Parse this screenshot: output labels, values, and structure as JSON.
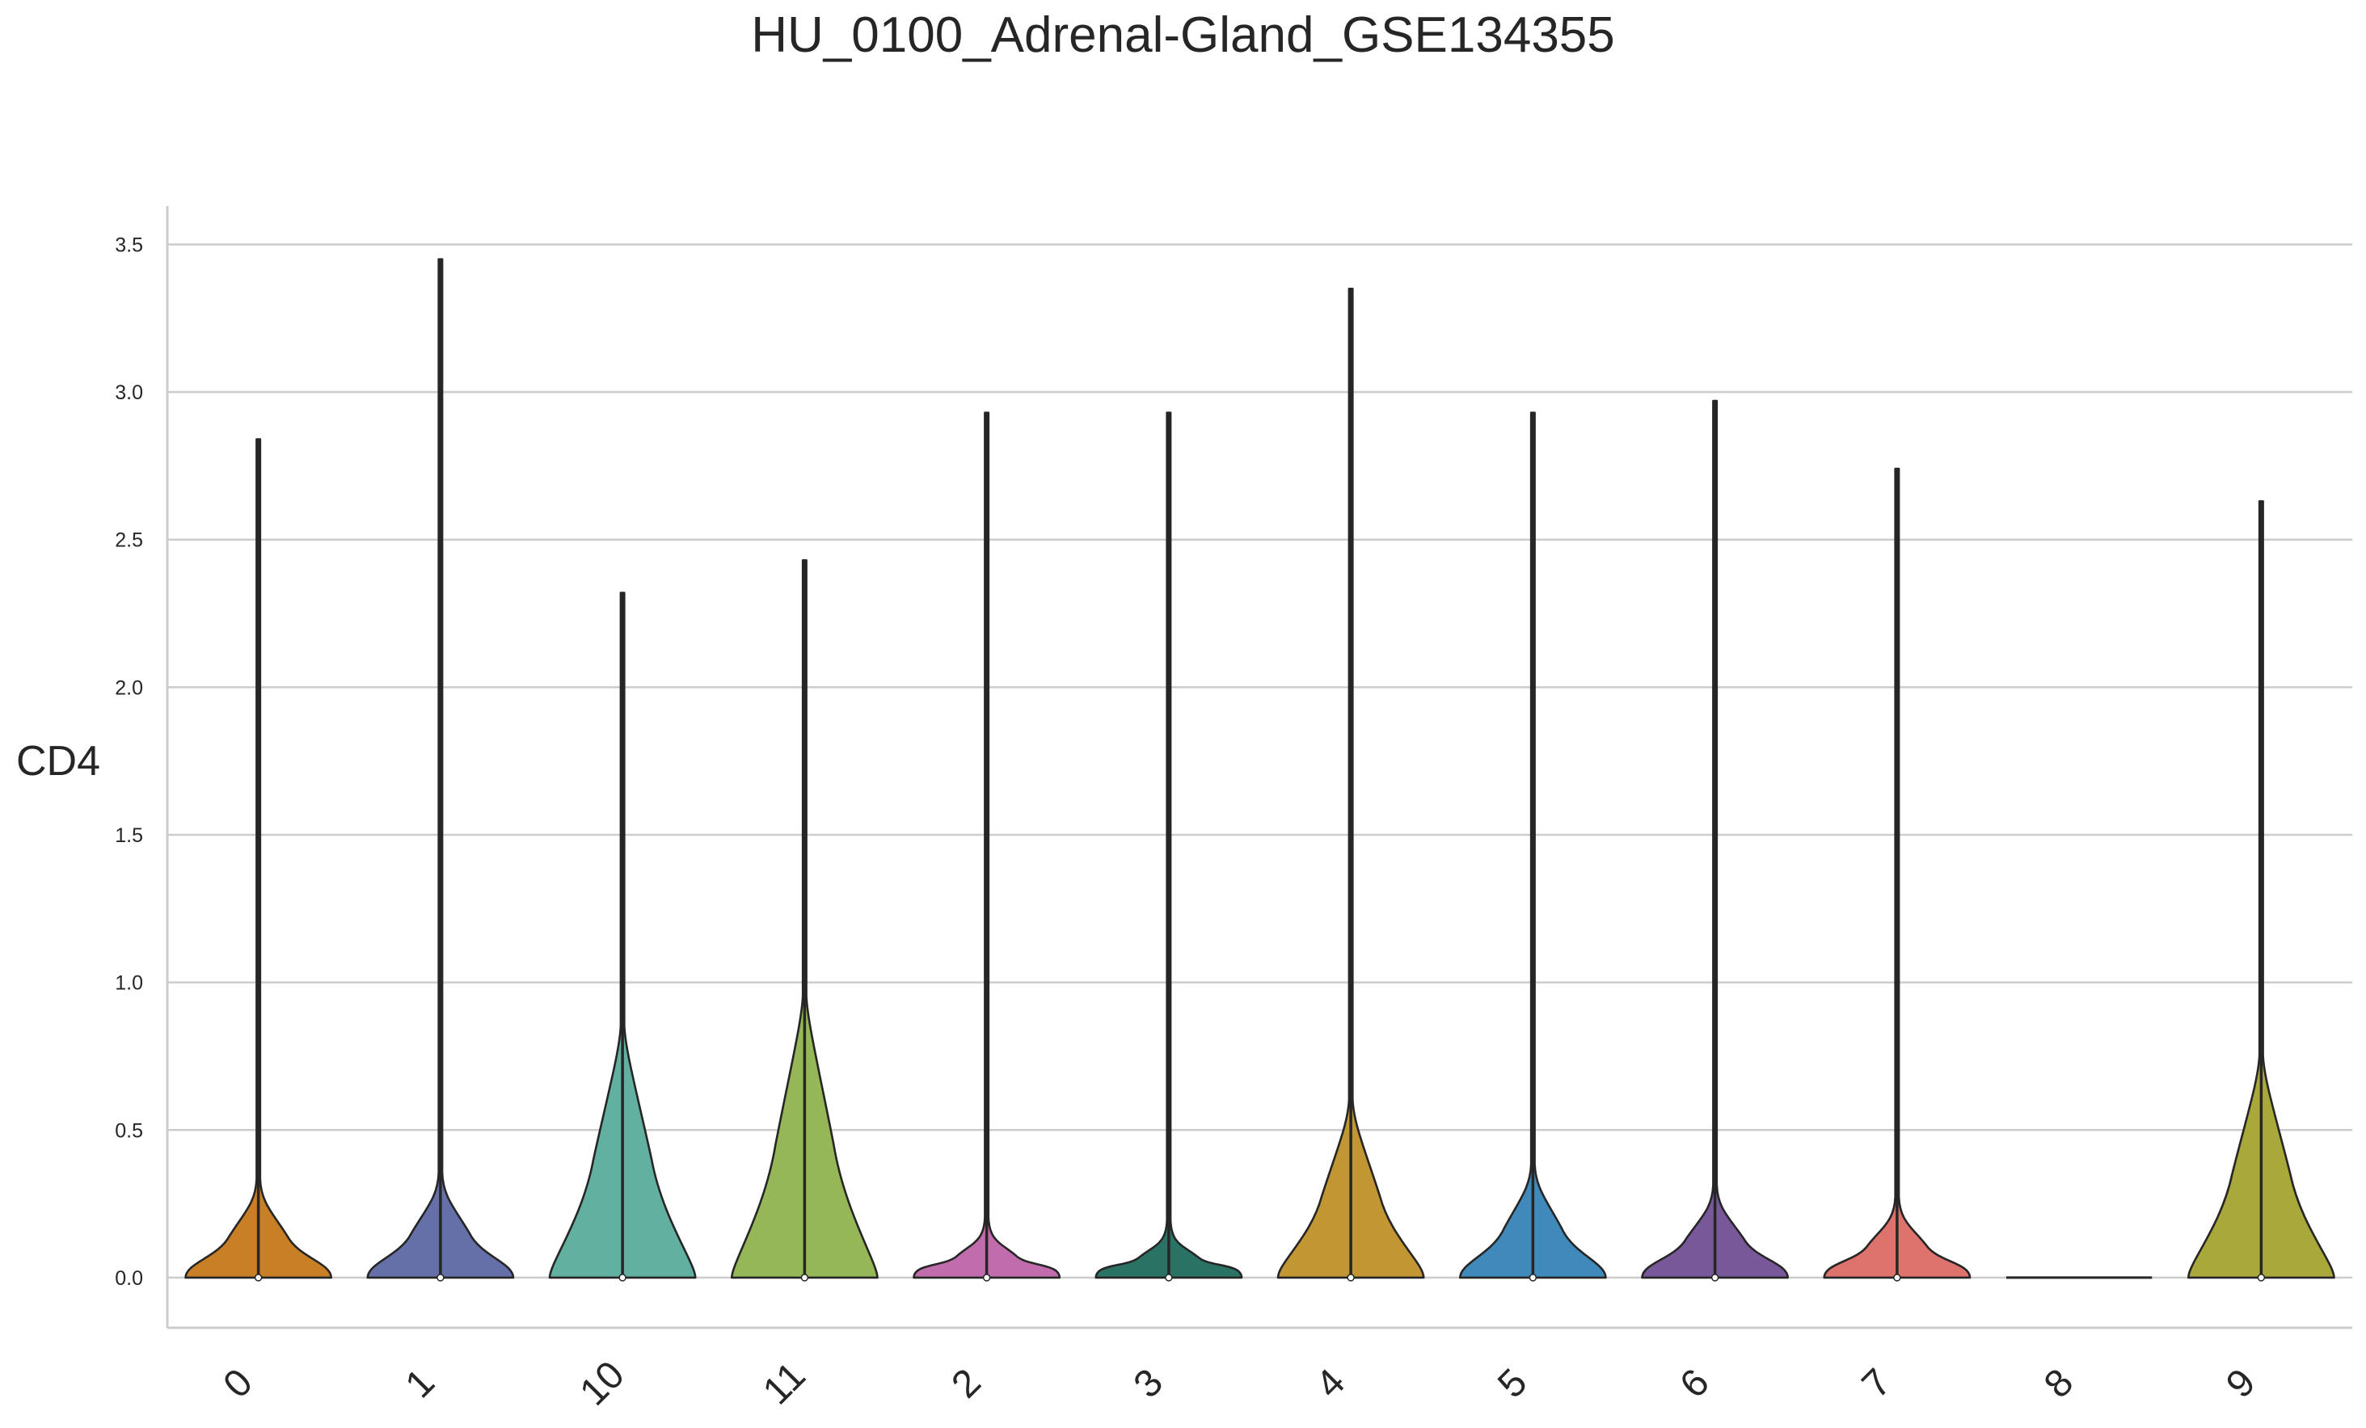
{
  "chart_data": {
    "type": "violin",
    "title": "HU_0100_Adrenal-Gland_GSE134355",
    "xlabel": "",
    "ylabel": "CD4",
    "ylim": [
      -0.17,
      3.63
    ],
    "yticks": [
      "0.0",
      "0.5",
      "1.0",
      "1.5",
      "2.0",
      "2.5",
      "3.0",
      "3.5"
    ],
    "grid": "horizontal",
    "categories": [
      "0",
      "1",
      "10",
      "11",
      "2",
      "3",
      "4",
      "5",
      "6",
      "7",
      "8",
      "9"
    ],
    "max_values": [
      2.84,
      3.45,
      2.32,
      2.43,
      2.93,
      2.93,
      3.35,
      2.93,
      2.97,
      2.74,
      0.0,
      2.63
    ],
    "density_peak_height": [
      0.28,
      0.3,
      0.8,
      0.9,
      0.15,
      0.14,
      0.55,
      0.33,
      0.26,
      0.22,
      0.0,
      0.7
    ],
    "medians": [
      0.0,
      0.0,
      0.0,
      0.0,
      0.0,
      0.0,
      0.0,
      0.0,
      0.0,
      0.0,
      0.0,
      0.0
    ],
    "colors": [
      "#c97f25",
      "#6570a8",
      "#62b0a0",
      "#95b758",
      "#c06cad",
      "#2a7264",
      "#c39634",
      "#3f8abb",
      "#79589a",
      "#de726c",
      "#5f5f5f",
      "#a9a83a"
    ]
  }
}
